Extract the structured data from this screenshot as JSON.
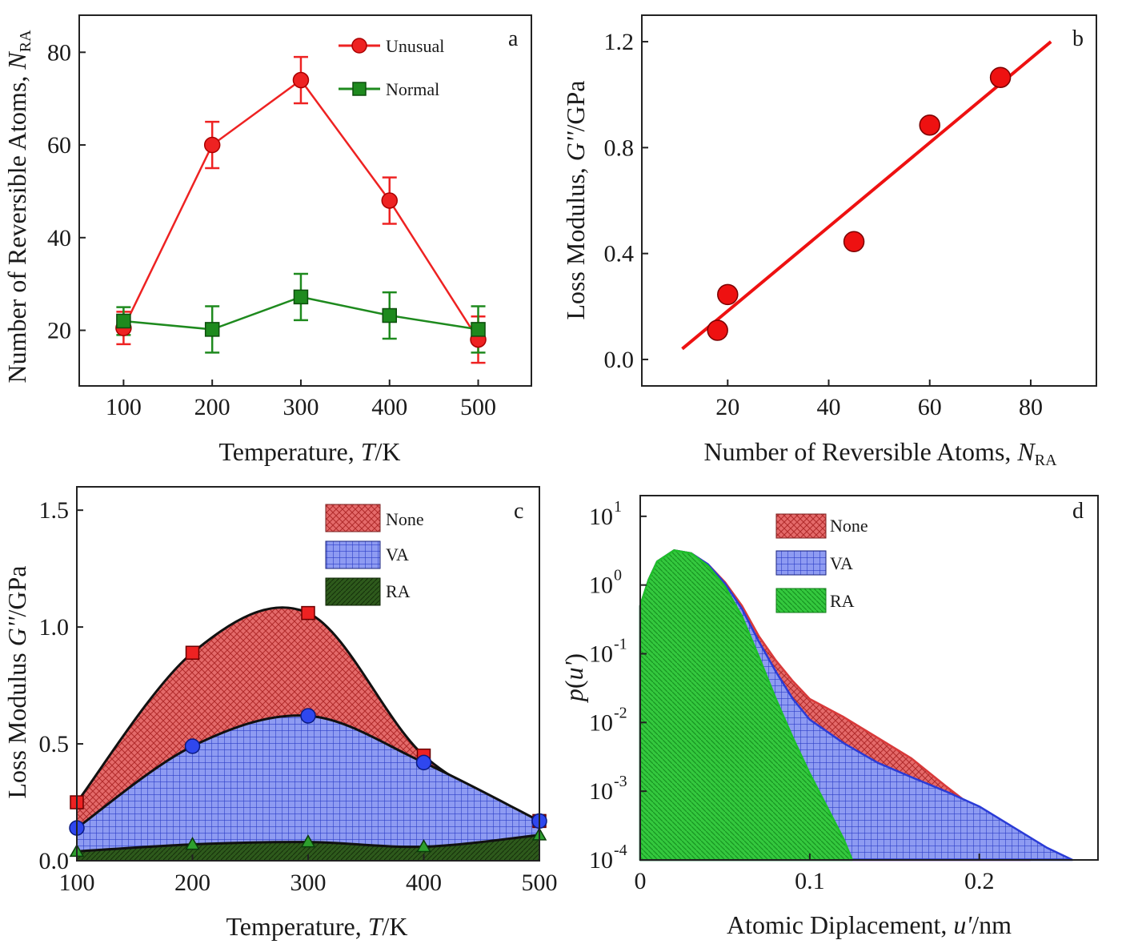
{
  "chart_data": [
    {
      "panel": "a",
      "type": "line",
      "panel_label": "a",
      "xlabel": "Temperature, T/K",
      "ylabel": "Number of Reversible Atoms, N_RA",
      "xlim": [
        50,
        560
      ],
      "ylim": [
        8,
        88
      ],
      "xticks": [
        100,
        200,
        300,
        400,
        500
      ],
      "yticks": [
        20,
        40,
        60,
        80
      ],
      "legend_position": "top-right",
      "series": [
        {
          "name": "Unusual",
          "color": "#ee2222",
          "marker": "circle",
          "x": [
            100,
            200,
            300,
            400,
            500
          ],
          "y": [
            20.5,
            60,
            74,
            48,
            18
          ],
          "err": [
            3.5,
            5,
            5,
            5,
            5
          ]
        },
        {
          "name": "Normal",
          "color": "#1e8a1e",
          "marker": "square",
          "x": [
            100,
            200,
            300,
            400,
            500
          ],
          "y": [
            22,
            20.2,
            27.2,
            23.2,
            20.2
          ],
          "err": [
            3,
            5,
            5,
            5,
            5
          ]
        }
      ]
    },
    {
      "panel": "b",
      "type": "scatter",
      "panel_label": "b",
      "xlabel": "Number of Reversible Atoms, N_RA",
      "ylabel": "Loss Modulus, G''/GPa",
      "xlim": [
        3,
        93
      ],
      "ylim": [
        -0.1,
        1.3
      ],
      "xticks": [
        20,
        40,
        60,
        80
      ],
      "yticks": [
        0.0,
        0.4,
        0.8,
        1.2
      ],
      "ytick_labels": [
        "0.0",
        "0.4",
        "0.8",
        "1.2"
      ],
      "points": {
        "x": [
          18,
          20,
          45,
          60,
          74
        ],
        "y": [
          0.11,
          0.245,
          0.445,
          0.885,
          1.065
        ]
      },
      "fit_line": {
        "x": [
          11,
          84
        ],
        "y": [
          0.04,
          1.2
        ]
      },
      "color": "#ee1111"
    },
    {
      "panel": "c",
      "type": "area",
      "panel_label": "c",
      "xlabel": "Temperature, T/K",
      "ylabel": "Loss Modulus G''/GPa",
      "xlim": [
        100,
        500
      ],
      "ylim": [
        0,
        1.6
      ],
      "xticks": [
        100,
        200,
        300,
        400,
        500
      ],
      "yticks": [
        0.0,
        0.5,
        1.0,
        1.5
      ],
      "ytick_labels": [
        "0.0",
        "0.5",
        "1.0",
        "1.5"
      ],
      "legend_position": "top-right",
      "series": [
        {
          "name": "None",
          "color": "#e05050",
          "marker": "square",
          "x": [
            100,
            200,
            300,
            400,
            500
          ],
          "y": [
            0.25,
            0.89,
            1.06,
            0.45,
            0.17
          ]
        },
        {
          "name": "VA",
          "color": "#4b5ee8",
          "marker": "circle",
          "x": [
            100,
            200,
            300,
            400,
            500
          ],
          "y": [
            0.14,
            0.49,
            0.62,
            0.42,
            0.17
          ]
        },
        {
          "name": "RA",
          "color": "#1f4a12",
          "marker": "triangle",
          "x": [
            100,
            200,
            300,
            400,
            500
          ],
          "y": [
            0.04,
            0.07,
            0.08,
            0.06,
            0.11
          ]
        }
      ]
    },
    {
      "panel": "d",
      "type": "area",
      "panel_label": "d",
      "xlabel": "Atomic Diplacement, u'/nm",
      "ylabel": "p(u')",
      "xlim": [
        0,
        0.27
      ],
      "ylim": [
        0.0001,
        20
      ],
      "yscale": "log",
      "xticks": [
        0,
        0.1,
        0.2
      ],
      "xtick_labels": [
        "0",
        "0.1",
        "0.2"
      ],
      "yticks": [
        0.0001,
        0.001,
        0.01,
        0.1,
        1,
        10
      ],
      "ytick_exponents": [
        "-4",
        "-3",
        "-2",
        "-1",
        "0",
        "1"
      ],
      "legend_position": "top-right",
      "series": [
        {
          "name": "None",
          "color": "#d83a3a",
          "x": [
            0,
            0.005,
            0.01,
            0.02,
            0.03,
            0.04,
            0.05,
            0.06,
            0.07,
            0.08,
            0.09,
            0.1,
            0.12,
            0.14,
            0.16,
            0.18,
            0.2,
            0.22,
            0.23
          ],
          "y": [
            0.5,
            1.2,
            2.2,
            3.2,
            2.9,
            2.0,
            1.1,
            0.5,
            0.18,
            0.08,
            0.04,
            0.022,
            0.012,
            0.006,
            0.003,
            0.0012,
            0.0005,
            0.00018,
            0.0001
          ]
        },
        {
          "name": "VA",
          "color": "#2a3bd6",
          "x": [
            0,
            0.005,
            0.01,
            0.02,
            0.03,
            0.04,
            0.05,
            0.06,
            0.07,
            0.08,
            0.09,
            0.1,
            0.12,
            0.14,
            0.16,
            0.18,
            0.2,
            0.22,
            0.24,
            0.255
          ],
          "y": [
            0.5,
            1.2,
            2.2,
            3.2,
            2.9,
            2.0,
            1.05,
            0.45,
            0.15,
            0.055,
            0.022,
            0.011,
            0.005,
            0.0026,
            0.0016,
            0.001,
            0.0006,
            0.0003,
            0.00015,
            0.0001
          ]
        },
        {
          "name": "RA",
          "color": "#1fbf2a",
          "x": [
            0,
            0.005,
            0.01,
            0.02,
            0.03,
            0.04,
            0.05,
            0.06,
            0.07,
            0.08,
            0.09,
            0.1,
            0.11,
            0.12,
            0.125
          ],
          "y": [
            0.5,
            1.2,
            2.2,
            3.2,
            2.9,
            1.9,
            0.95,
            0.35,
            0.09,
            0.022,
            0.006,
            0.0018,
            0.0006,
            0.0002,
            0.0001
          ]
        }
      ]
    }
  ]
}
